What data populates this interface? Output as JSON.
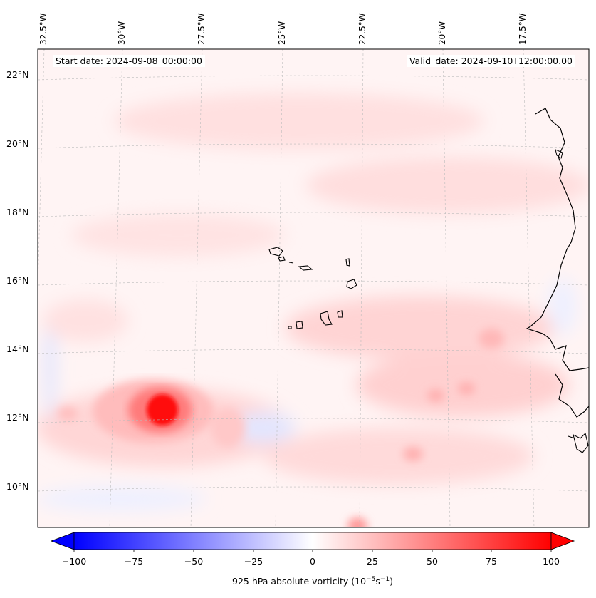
{
  "map": {
    "start_label": "Start date: 2024-09-08_00:00:00",
    "valid_label": "Valid_date: 2024-09-10T12:00:00.00",
    "longitude_labels": [
      "32.5°W",
      "30°W",
      "27.5°W",
      "25°W",
      "22.5°W",
      "20°W",
      "17.5°W"
    ],
    "latitude_labels": [
      "22°N",
      "20°N",
      "18°N",
      "16°N",
      "14°N",
      "12°N",
      "10°N"
    ],
    "colorbar_ticks": [
      "−100",
      "−75",
      "−50",
      "−25",
      "0",
      "25",
      "50",
      "75",
      "100"
    ],
    "colorbar_title": "925 hPa absolute vorticity (10",
    "colorbar_title_exp1": "−5",
    "colorbar_title_mid": "s",
    "colorbar_title_exp2": "−1",
    "colorbar_title_end": ")",
    "colormap": "bwr",
    "colors": {
      "min": "#0000ff",
      "mid": "#ffffff",
      "max": "#ff0000"
    },
    "value_range": [
      -100,
      100
    ],
    "projection": "conic",
    "gridlines": true
  },
  "chart_data": {
    "type": "heatmap",
    "variable": "925 hPa absolute vorticity",
    "units": "10^-5 s^-1",
    "lon_range_deg": [
      -33,
      -15.5
    ],
    "lat_range_deg": [
      9,
      23
    ],
    "colorbar_range": [
      -100,
      100
    ],
    "features": [
      {
        "lon": -29.3,
        "lat": 12.2,
        "value": 100
      },
      {
        "lon": -22.3,
        "lat": 8.9,
        "value": 45
      },
      {
        "lon": -19.5,
        "lat": 12.6,
        "value": 35
      },
      {
        "lon": -20.5,
        "lat": 11.0,
        "value": 35
      },
      {
        "lon": -17.2,
        "lat": 14.3,
        "value": 35
      },
      {
        "lon": -25.5,
        "lat": 12.0,
        "value": -30
      },
      {
        "lon": -32.4,
        "lat": 13.5,
        "value": -30
      },
      {
        "lon": -29.5,
        "lat": 9.7,
        "value": -15
      }
    ]
  }
}
